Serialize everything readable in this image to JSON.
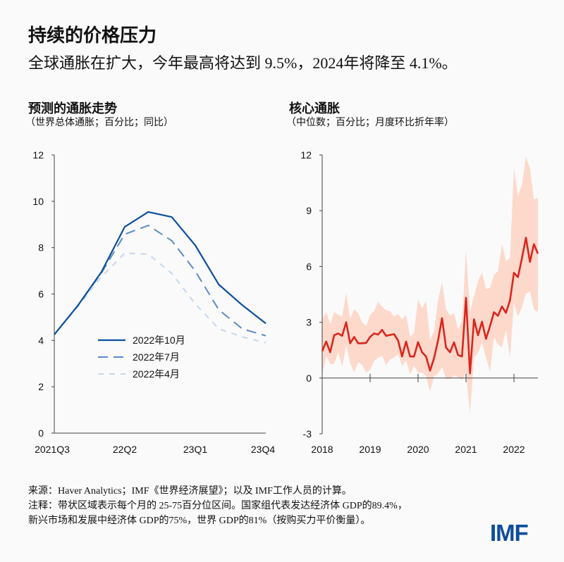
{
  "header": {
    "title": "持续的价格压力",
    "subtitle": "全球通胀在扩大，今年最高将达到 9.5%，2024年将降至 4.1%。"
  },
  "footer": {
    "source": "来源：Haver Analytics；IMF《世界经济展望》；以及 IMF工作人员的计算。",
    "note_line1": "注释：带状区域表示每个月的 25-75百分位区间。国家组代表发达经济体 GDP的89.4%，",
    "note_line2": "新兴市场和发展中经济体 GDP的75%，世界 GDP的81%（按购买力平价衡量）。",
    "logo": "IMF"
  },
  "colors": {
    "oct": "#0b4f9e",
    "jul": "#5b8dc4",
    "apr": "#c5d7ec",
    "median": "#d9261c",
    "band": "#fdd9cc",
    "axis": "#444444"
  },
  "chart_data": [
    {
      "type": "line",
      "title": "预测的通胀走势",
      "subtitle": "（世界总体通胀；百分比；同比）",
      "categories": [
        "2021Q3",
        "2021Q4",
        "2022Q1",
        "22Q2",
        "2022Q3",
        "2022Q4",
        "23Q1",
        "2023Q2",
        "2023Q3",
        "23Q4"
      ],
      "xtick_labels": [
        "2021Q3",
        "22Q2",
        "23Q1",
        "23Q4"
      ],
      "ylim": [
        0,
        12
      ],
      "yticks": [
        "0",
        "2",
        "4",
        "6",
        "8",
        "10",
        "12"
      ],
      "legend_position": "lower-center",
      "series": [
        {
          "name": "2022年10月",
          "style": "solid",
          "values": [
            4.25,
            5.5,
            6.94,
            8.9,
            9.54,
            9.32,
            8.1,
            6.41,
            5.52,
            4.73
          ]
        },
        {
          "name": "2022年7月",
          "style": "long-dash",
          "values": [
            4.25,
            5.5,
            6.9,
            8.58,
            8.96,
            8.3,
            6.99,
            5.32,
            4.5,
            4.2
          ]
        },
        {
          "name": "2022年4月",
          "style": "short-dash",
          "values": [
            4.25,
            5.45,
            6.73,
            7.77,
            7.72,
            6.89,
            5.57,
            4.5,
            4.15,
            3.9
          ]
        }
      ]
    },
    {
      "type": "area",
      "title": "核心通胀",
      "subtitle": "（中位数；百分比；月度环比折年率）",
      "x_start": "2018-01",
      "x_frequency": "monthly",
      "xtick_labels": [
        "2018",
        "2019",
        "2020",
        "2021",
        "2022"
      ],
      "ylim": [
        -3,
        12
      ],
      "yticks": [
        "-3",
        "0",
        "3",
        "6",
        "9",
        "12"
      ],
      "median": [
        1.45,
        1.96,
        1.39,
        2.3,
        2.4,
        2.27,
        3.0,
        1.87,
        2.21,
        1.87,
        1.87,
        1.89,
        2.21,
        2.4,
        2.34,
        2.59,
        2.27,
        2.32,
        2.36,
        2.02,
        1.16,
        1.96,
        1.16,
        1.16,
        1.93,
        1.39,
        1.16,
        0.4,
        1.07,
        2.02,
        3.22,
        1.64,
        1.39,
        1.92,
        1.24,
        1.16,
        4.32,
        0.25,
        3.16,
        2.3,
        3.03,
        2.11,
        2.78,
        3.54,
        3.35,
        3.85,
        3.51,
        4.17,
        5.66,
        5.43,
        6.44,
        7.55,
        6.25,
        7.2,
        6.69
      ],
      "p75": [
        3.16,
        3.55,
        2.9,
        3.55,
        3.4,
        3.3,
        4.55,
        3.2,
        3.7,
        3.5,
        3.0,
        2.8,
        3.4,
        3.6,
        4.1,
        3.85,
        3.65,
        3.6,
        3.3,
        3.45,
        3.15,
        3.4,
        2.2,
        2.45,
        4.25,
        3.75,
        4.15,
        2.05,
        2.5,
        4.2,
        5.15,
        3.7,
        3.35,
        3.5,
        2.6,
        3.05,
        6.9,
        3.6,
        4.4,
        5.2,
        5.7,
        4.8,
        4.85,
        5.55,
        5.75,
        7.2,
        6.3,
        6.45,
        11.3,
        9.8,
        10.4,
        11.9,
        11.3,
        9.6,
        9.7
      ],
      "p25": [
        0.2,
        1.2,
        0.75,
        0.75,
        1.4,
        0.6,
        1.75,
        0.8,
        0.3,
        0.85,
        0.7,
        0.3,
        0.45,
        0.9,
        1.1,
        1.2,
        0.7,
        1.0,
        1.1,
        1.3,
        0.65,
        0.95,
        0.2,
        0.65,
        0.3,
        0.3,
        0.1,
        -0.75,
        0.1,
        0.25,
        0.6,
        -0.05,
        -0.05,
        0.15,
        0.05,
        -0.1,
        0.3,
        -1.95,
        1.1,
        1.35,
        1.9,
        1.1,
        0.35,
        2.2,
        1.8,
        1.65,
        2.6,
        1.1,
        4.05,
        3.3,
        3.8,
        4.55,
        4.65,
        3.7,
        3.55
      ]
    }
  ]
}
